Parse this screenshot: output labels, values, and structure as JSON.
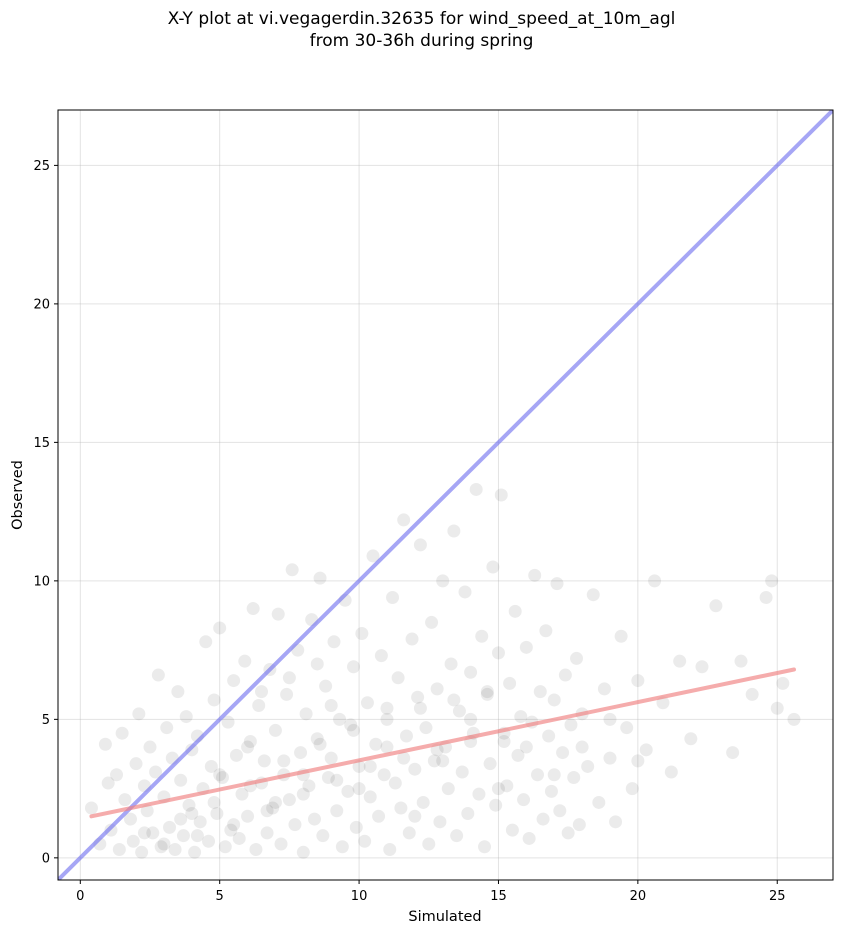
{
  "chart_data": {
    "type": "scatter",
    "title": "X-Y plot at vi.vegagerdin.32635 for wind_speed_at_10m_agl",
    "subtitle": "from 30-36h during spring",
    "xlabel": "Simulated",
    "ylabel": "Observed",
    "xlim": [
      -0.8,
      27.0
    ],
    "ylim": [
      -0.8,
      27.0
    ],
    "xticks": [
      0,
      5,
      10,
      15,
      20,
      25
    ],
    "yticks": [
      0,
      5,
      10,
      15,
      20,
      25
    ],
    "grid": true,
    "colors": {
      "points": "#000000",
      "one_to_one_line": "#6b6bef",
      "fit_line": "#ef7f7f"
    },
    "one_to_one_line": {
      "x": [
        -0.8,
        27.0
      ],
      "y": [
        -0.8,
        27.0
      ]
    },
    "fit_line": {
      "x": [
        0.4,
        25.6
      ],
      "y": [
        1.5,
        6.8
      ]
    },
    "points": [
      [
        0.4,
        1.8
      ],
      [
        0.7,
        0.5
      ],
      [
        0.9,
        4.1
      ],
      [
        1.0,
        2.7
      ],
      [
        1.1,
        1.0
      ],
      [
        1.3,
        3.0
      ],
      [
        1.4,
        0.3
      ],
      [
        1.5,
        4.5
      ],
      [
        1.6,
        2.1
      ],
      [
        1.8,
        1.4
      ],
      [
        1.9,
        0.6
      ],
      [
        2.0,
        3.4
      ],
      [
        2.1,
        5.2
      ],
      [
        2.2,
        0.2
      ],
      [
        2.3,
        2.6
      ],
      [
        2.4,
        1.7
      ],
      [
        2.5,
        4.0
      ],
      [
        2.6,
        0.9
      ],
      [
        2.7,
        3.1
      ],
      [
        2.8,
        6.6
      ],
      [
        2.9,
        0.4
      ],
      [
        3.0,
        2.2
      ],
      [
        3.1,
        4.7
      ],
      [
        3.2,
        1.1
      ],
      [
        3.3,
        3.6
      ],
      [
        3.4,
        0.3
      ],
      [
        3.5,
        6.0
      ],
      [
        3.6,
        2.8
      ],
      [
        3.7,
        0.8
      ],
      [
        3.8,
        5.1
      ],
      [
        3.9,
        1.9
      ],
      [
        4.0,
        3.9
      ],
      [
        4.1,
        0.2
      ],
      [
        4.2,
        4.4
      ],
      [
        4.3,
        1.3
      ],
      [
        4.4,
        2.5
      ],
      [
        4.5,
        7.8
      ],
      [
        4.6,
        0.6
      ],
      [
        4.7,
        3.3
      ],
      [
        4.8,
        5.7
      ],
      [
        4.9,
        1.6
      ],
      [
        5.0,
        8.3
      ],
      [
        5.1,
        2.9
      ],
      [
        5.2,
        0.4
      ],
      [
        5.3,
        4.9
      ],
      [
        5.4,
        1.0
      ],
      [
        5.5,
        6.4
      ],
      [
        5.6,
        3.7
      ],
      [
        5.7,
        0.7
      ],
      [
        5.8,
        2.3
      ],
      [
        5.9,
        7.1
      ],
      [
        6.0,
        1.5
      ],
      [
        6.1,
        4.2
      ],
      [
        6.2,
        9.0
      ],
      [
        6.3,
        0.3
      ],
      [
        6.4,
        5.5
      ],
      [
        6.5,
        2.7
      ],
      [
        6.6,
        3.5
      ],
      [
        6.7,
        0.9
      ],
      [
        6.8,
        6.8
      ],
      [
        6.9,
        1.8
      ],
      [
        7.0,
        4.6
      ],
      [
        7.1,
        8.8
      ],
      [
        7.2,
        0.5
      ],
      [
        7.3,
        3.0
      ],
      [
        7.4,
        5.9
      ],
      [
        7.5,
        2.1
      ],
      [
        7.6,
        10.4
      ],
      [
        7.7,
        1.2
      ],
      [
        7.8,
        7.5
      ],
      [
        7.9,
        3.8
      ],
      [
        8.0,
        0.2
      ],
      [
        8.1,
        5.2
      ],
      [
        8.2,
        2.6
      ],
      [
        8.3,
        8.6
      ],
      [
        8.4,
        1.4
      ],
      [
        8.5,
        4.3
      ],
      [
        8.6,
        10.1
      ],
      [
        8.7,
        0.8
      ],
      [
        8.8,
        6.2
      ],
      [
        8.9,
        2.9
      ],
      [
        9.0,
        3.6
      ],
      [
        9.1,
        7.8
      ],
      [
        9.2,
        1.7
      ],
      [
        9.3,
        5.0
      ],
      [
        9.4,
        0.4
      ],
      [
        9.5,
        9.3
      ],
      [
        9.6,
        2.4
      ],
      [
        9.7,
        4.8
      ],
      [
        9.8,
        6.9
      ],
      [
        9.9,
        1.1
      ],
      [
        10.0,
        3.3
      ],
      [
        10.1,
        8.1
      ],
      [
        10.2,
        0.6
      ],
      [
        10.3,
        5.6
      ],
      [
        10.4,
        2.2
      ],
      [
        10.5,
        10.9
      ],
      [
        10.6,
        4.1
      ],
      [
        10.7,
        1.5
      ],
      [
        10.8,
        7.3
      ],
      [
        10.9,
        3.0
      ],
      [
        11.0,
        5.4
      ],
      [
        11.1,
        0.3
      ],
      [
        11.2,
        9.4
      ],
      [
        11.3,
        2.7
      ],
      [
        11.4,
        6.5
      ],
      [
        11.5,
        1.8
      ],
      [
        11.6,
        12.2
      ],
      [
        11.7,
        4.4
      ],
      [
        11.8,
        0.9
      ],
      [
        11.9,
        7.9
      ],
      [
        12.0,
        3.2
      ],
      [
        12.1,
        5.8
      ],
      [
        12.2,
        11.3
      ],
      [
        12.3,
        2.0
      ],
      [
        12.4,
        4.7
      ],
      [
        12.5,
        0.5
      ],
      [
        12.6,
        8.5
      ],
      [
        12.7,
        3.5
      ],
      [
        12.8,
        6.1
      ],
      [
        12.9,
        1.3
      ],
      [
        13.0,
        10.0
      ],
      [
        13.1,
        4.0
      ],
      [
        13.2,
        2.5
      ],
      [
        13.3,
        7.0
      ],
      [
        13.4,
        11.8
      ],
      [
        13.5,
        0.8
      ],
      [
        13.6,
        5.3
      ],
      [
        13.7,
        3.1
      ],
      [
        13.8,
        9.6
      ],
      [
        13.9,
        1.6
      ],
      [
        14.0,
        6.7
      ],
      [
        14.1,
        4.5
      ],
      [
        14.2,
        13.3
      ],
      [
        14.3,
        2.3
      ],
      [
        14.4,
        8.0
      ],
      [
        14.5,
        0.4
      ],
      [
        14.6,
        5.9
      ],
      [
        14.7,
        3.4
      ],
      [
        14.8,
        10.5
      ],
      [
        14.9,
        1.9
      ],
      [
        15.0,
        7.4
      ],
      [
        15.1,
        13.1
      ],
      [
        15.2,
        4.2
      ],
      [
        15.3,
        2.6
      ],
      [
        15.4,
        6.3
      ],
      [
        15.5,
        1.0
      ],
      [
        15.6,
        8.9
      ],
      [
        15.7,
        3.7
      ],
      [
        15.8,
        5.1
      ],
      [
        15.9,
        2.1
      ],
      [
        16.0,
        7.6
      ],
      [
        16.1,
        0.7
      ],
      [
        16.2,
        4.9
      ],
      [
        16.3,
        10.2
      ],
      [
        16.4,
        3.0
      ],
      [
        16.5,
        6.0
      ],
      [
        16.6,
        1.4
      ],
      [
        16.7,
        8.2
      ],
      [
        16.8,
        4.4
      ],
      [
        16.9,
        2.4
      ],
      [
        17.0,
        5.7
      ],
      [
        17.1,
        9.9
      ],
      [
        17.2,
        1.7
      ],
      [
        17.3,
        3.8
      ],
      [
        17.4,
        6.6
      ],
      [
        17.5,
        0.9
      ],
      [
        17.6,
        4.8
      ],
      [
        17.7,
        2.9
      ],
      [
        17.8,
        7.2
      ],
      [
        17.9,
        1.2
      ],
      [
        18.0,
        5.2
      ],
      [
        18.2,
        3.3
      ],
      [
        18.4,
        9.5
      ],
      [
        18.6,
        2.0
      ],
      [
        18.8,
        6.1
      ],
      [
        19.0,
        3.6
      ],
      [
        19.2,
        1.3
      ],
      [
        19.4,
        8.0
      ],
      [
        19.6,
        4.7
      ],
      [
        19.8,
        2.5
      ],
      [
        20.0,
        6.4
      ],
      [
        20.3,
        3.9
      ],
      [
        20.6,
        10.0
      ],
      [
        20.9,
        5.6
      ],
      [
        21.2,
        3.1
      ],
      [
        21.5,
        7.1
      ],
      [
        21.9,
        4.3
      ],
      [
        22.3,
        6.9
      ],
      [
        22.8,
        9.1
      ],
      [
        23.4,
        3.8
      ],
      [
        23.7,
        7.1
      ],
      [
        24.1,
        5.9
      ],
      [
        24.6,
        9.4
      ],
      [
        24.8,
        10.0
      ],
      [
        25.0,
        5.4
      ],
      [
        25.2,
        6.3
      ],
      [
        25.6,
        5.0
      ],
      [
        2.3,
        0.9
      ],
      [
        3.0,
        0.5
      ],
      [
        3.6,
        1.4
      ],
      [
        4.2,
        0.8
      ],
      [
        4.8,
        2.0
      ],
      [
        5.5,
        1.2
      ],
      [
        6.1,
        2.6
      ],
      [
        6.7,
        1.7
      ],
      [
        7.3,
        3.5
      ],
      [
        8.0,
        2.3
      ],
      [
        8.6,
        4.1
      ],
      [
        9.2,
        2.8
      ],
      [
        9.8,
        4.6
      ],
      [
        10.4,
        3.3
      ],
      [
        11.0,
        5.0
      ],
      [
        11.6,
        3.6
      ],
      [
        12.2,
        5.4
      ],
      [
        12.8,
        3.9
      ],
      [
        13.4,
        5.7
      ],
      [
        14.0,
        4.2
      ],
      [
        14.6,
        6.0
      ],
      [
        15.2,
        4.5
      ],
      [
        4.0,
        1.6
      ],
      [
        5.0,
        3.0
      ],
      [
        6.0,
        4.0
      ],
      [
        7.0,
        2.0
      ],
      [
        8.0,
        3.0
      ],
      [
        9.0,
        5.5
      ],
      [
        10.0,
        2.5
      ],
      [
        11.0,
        4.0
      ],
      [
        12.0,
        1.5
      ],
      [
        13.0,
        3.5
      ],
      [
        14.0,
        5.0
      ],
      [
        15.0,
        2.5
      ],
      [
        16.0,
        4.0
      ],
      [
        17.0,
        3.0
      ],
      [
        18.0,
        4.0
      ],
      [
        19.0,
        5.0
      ],
      [
        20.0,
        3.5
      ],
      [
        6.5,
        6.0
      ],
      [
        7.5,
        6.5
      ],
      [
        8.5,
        7.0
      ]
    ]
  }
}
